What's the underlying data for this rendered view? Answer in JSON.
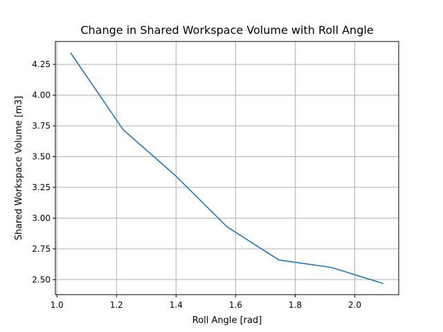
{
  "chart_data": {
    "type": "line",
    "title": "Change in Shared Workspace Volume with Roll Angle",
    "xlabel": "Roll Angle [rad]",
    "ylabel": "Shared Workspace Volume [m3]",
    "xlim": [
      0.9948,
      2.1476
    ],
    "ylim": [
      2.378,
      4.436
    ],
    "x_ticks": [
      1.0,
      1.2,
      1.4,
      1.6,
      1.8,
      2.0
    ],
    "x_tick_labels": [
      "1.0",
      "1.2",
      "1.4",
      "1.6",
      "1.8",
      "2.0"
    ],
    "y_ticks": [
      2.5,
      2.75,
      3.0,
      3.25,
      3.5,
      3.75,
      4.0,
      4.25
    ],
    "y_tick_labels": [
      "2.50",
      "2.75",
      "3.00",
      "3.25",
      "3.50",
      "3.75",
      "4.00",
      "4.25"
    ],
    "grid": true,
    "color": "#1f77b4",
    "series": [
      {
        "x": [
          1.047,
          1.222,
          1.396,
          1.571,
          1.745,
          1.92,
          2.094
        ],
        "values": [
          4.34,
          3.72,
          3.35,
          2.93,
          2.66,
          2.6,
          2.47
        ]
      }
    ]
  }
}
